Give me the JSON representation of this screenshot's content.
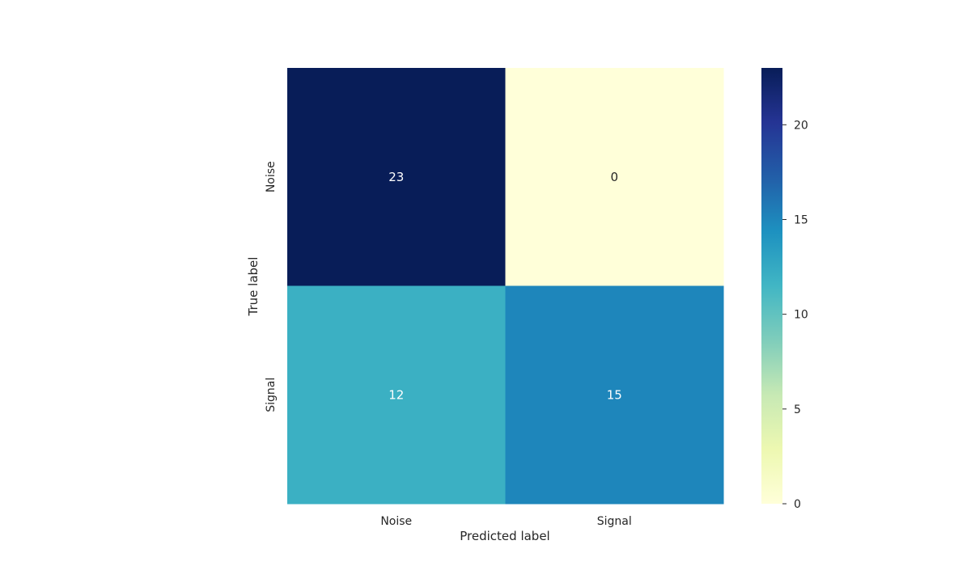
{
  "chart_data": {
    "type": "heatmap",
    "title": "",
    "xlabel": "Predicted label",
    "ylabel": "True label",
    "x_categories": [
      "Noise",
      "Signal"
    ],
    "y_categories": [
      "Noise",
      "Signal"
    ],
    "values": [
      [
        23,
        0
      ],
      [
        12,
        15
      ]
    ],
    "colormap": "YlGnBu",
    "colorbar": {
      "min": 0,
      "max": 23,
      "ticks": [
        0,
        5,
        10,
        15,
        20
      ]
    },
    "colors": {
      "high_text": "#ffffff",
      "low_text": "#262626"
    }
  }
}
